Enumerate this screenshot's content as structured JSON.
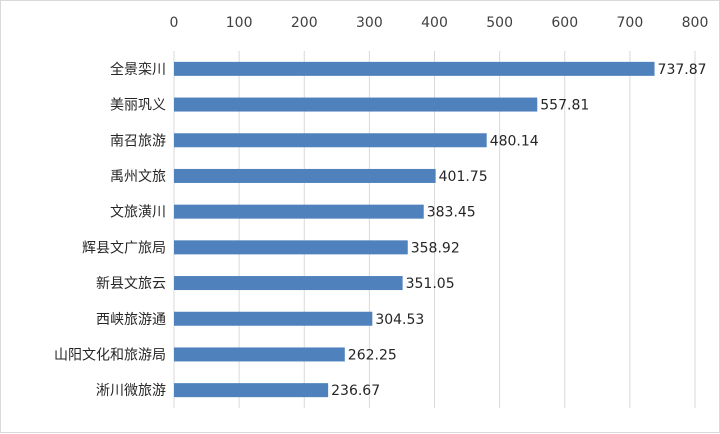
{
  "chart_data": {
    "type": "bar",
    "orientation": "horizontal",
    "categories": [
      "全景栾川",
      "美丽巩义",
      "南召旅游",
      "禹州文旅",
      "文旅潢川",
      "辉县文广旅局",
      "新县文旅云",
      "西峡旅游通",
      "山阳文化和旅游局",
      "淅川微旅游"
    ],
    "values": [
      737.87,
      557.81,
      480.14,
      401.75,
      383.45,
      358.92,
      351.05,
      304.53,
      262.25,
      236.67
    ],
    "value_labels": [
      "737.87",
      "557.81",
      "480.14",
      "401.75",
      "383.45",
      "358.92",
      "351.05",
      "304.53",
      "262.25",
      "236.67"
    ],
    "x_ticks": [
      "0",
      "100",
      "200",
      "300",
      "400",
      "500",
      "600",
      "700",
      "800"
    ],
    "xlim": [
      0,
      800
    ],
    "x_axis_position": "top",
    "grid": true,
    "bar_color": "#4f81bd",
    "grid_color": "#d9d9d9"
  }
}
